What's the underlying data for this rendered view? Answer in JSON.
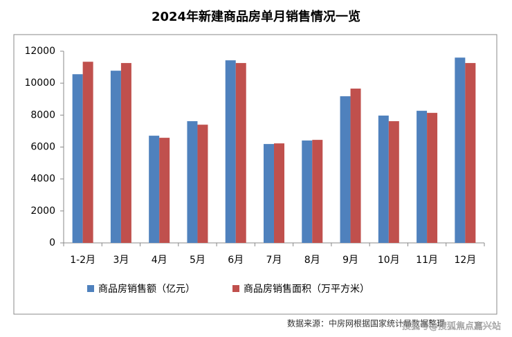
{
  "chart_data": {
    "type": "bar",
    "title": "2024年新建商品房单月销售情况一览",
    "categories": [
      "1-2月",
      "3月",
      "4月",
      "5月",
      "6月",
      "7月",
      "8月",
      "9月",
      "10月",
      "11月",
      "12月"
    ],
    "series": [
      {
        "name": "商品房销售额（亿元）",
        "color": "#4f81bd",
        "values": [
          10560,
          10780,
          6710,
          7620,
          11430,
          6190,
          6410,
          9180,
          7970,
          8270,
          11600
        ]
      },
      {
        "name": "商品房销售面积（万平方米）",
        "color": "#c0504d",
        "values": [
          11340,
          11260,
          6580,
          7400,
          11260,
          6230,
          6450,
          9660,
          7620,
          8140,
          11260
        ]
      }
    ],
    "ylim": [
      0,
      12000
    ],
    "yticks": [
      0,
      2000,
      4000,
      6000,
      8000,
      10000,
      12000
    ],
    "legend": "bottom",
    "source": "数据来源：中房网根据国家统计局数据整理",
    "watermark": "搜狐号@搜狐焦点嘉兴站"
  }
}
